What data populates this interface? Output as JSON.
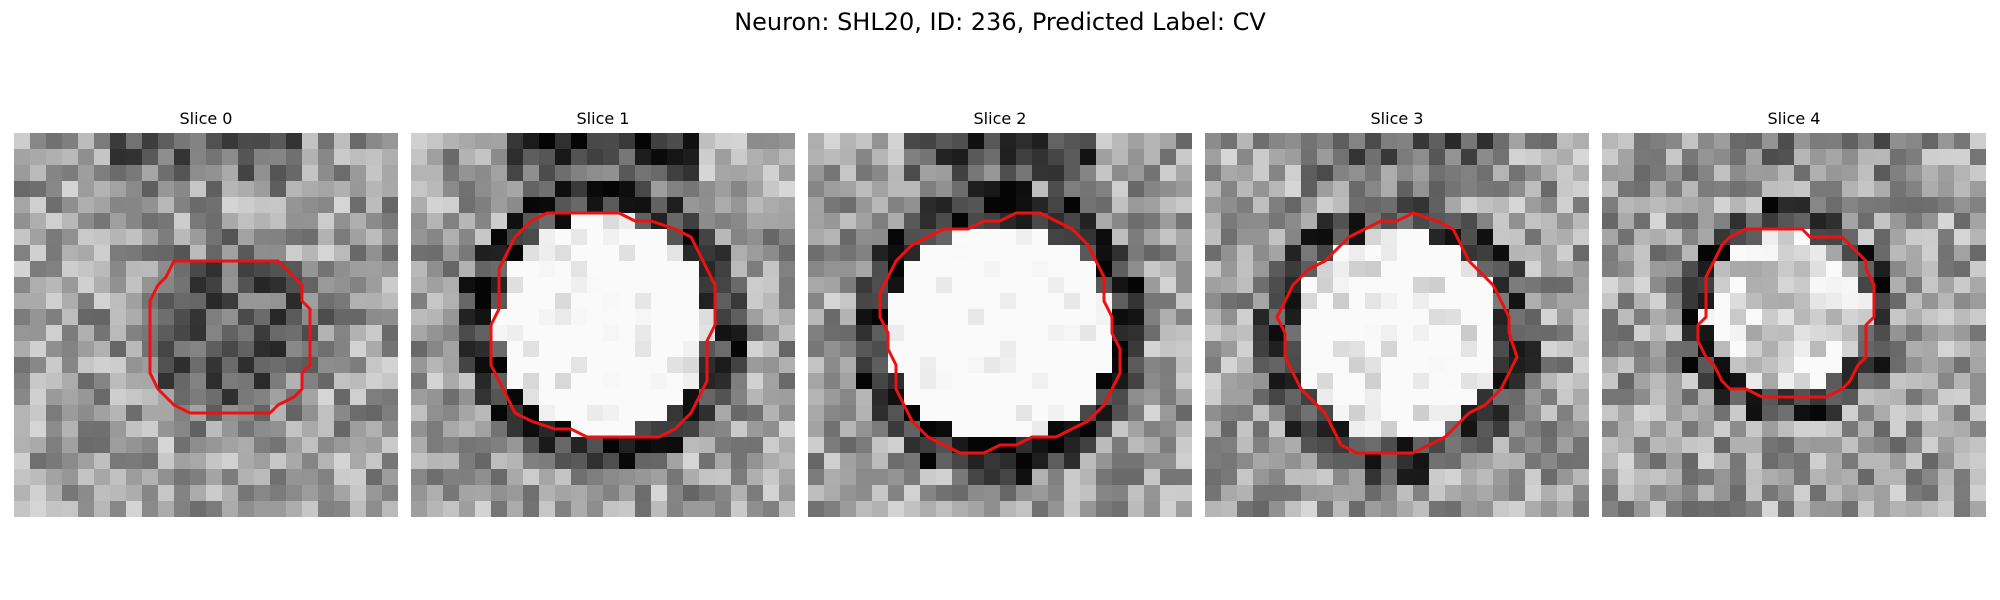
{
  "figure": {
    "title": "Neuron: SHL20, ID: 236, Predicted Label: CV"
  },
  "panels": [
    {
      "title": "Slice 0"
    },
    {
      "title": "Slice 1"
    },
    {
      "title": "Slice 2"
    },
    {
      "title": "Slice 3"
    },
    {
      "title": "Slice 4"
    }
  ],
  "colors": {
    "contour": "#ee1111"
  }
}
